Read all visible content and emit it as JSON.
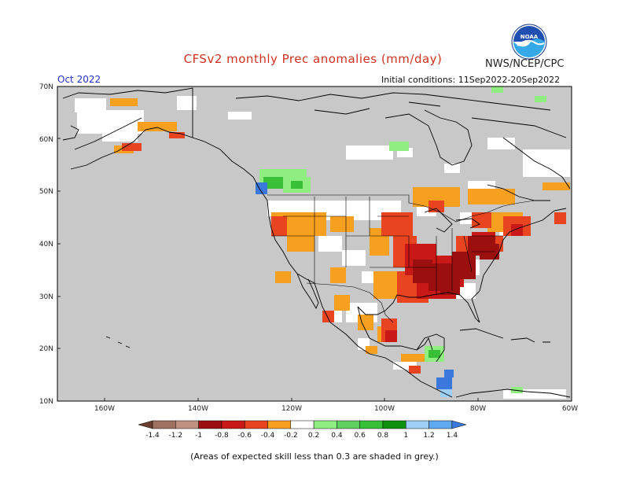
{
  "header": {
    "title": "CFSv2 monthly Prec anomalies (mm/day)",
    "organization": "NWS/NCEP/CPC",
    "logo_text": "NOAA",
    "target_month": "Oct 2022",
    "initial_conditions": "Initial conditions: 11Sep2022-20Sep2022"
  },
  "map": {
    "latitude_labels": [
      "70N",
      "60N",
      "50N",
      "40N",
      "30N",
      "20N",
      "10N"
    ],
    "longitude_labels": [
      "160W",
      "140W",
      "120W",
      "100W",
      "80W",
      "60W"
    ],
    "colors": {
      "skill_mask": "#c8c8c8",
      "no_anomaly": "#ffffff",
      "dry_orange": "#f7a020",
      "dry_red_orange": "#e84420",
      "dry_red": "#c81818",
      "dry_dark_red": "#9c0f0f",
      "wet_light_green": "#90ee80",
      "wet_green": "#38c038",
      "wet_light_blue": "#9ed0f5",
      "wet_blue": "#3a78dc",
      "coastline": "#000000"
    }
  },
  "legend": {
    "tick_labels": [
      "-1.4",
      "-1.2",
      "-1",
      "-0.8",
      "-0.6",
      "-0.4",
      "-0.2",
      "0.2",
      "0.4",
      "0.6",
      "0.8",
      "1",
      "1.2",
      "1.4"
    ],
    "colors": [
      "#6b3e2e",
      "#a07060",
      "#c09080",
      "#9c0f0f",
      "#c81818",
      "#e84420",
      "#f7a020",
      "#ffffff",
      "#90ee80",
      "#60d060",
      "#38c038",
      "#109010",
      "#9ed0f5",
      "#60a8f0",
      "#3a78dc"
    ],
    "under_color": "#6b3e2e",
    "over_color": "#3a78dc"
  },
  "footnote": "(Areas of expected skill less than 0.3 are shaded in grey.)"
}
